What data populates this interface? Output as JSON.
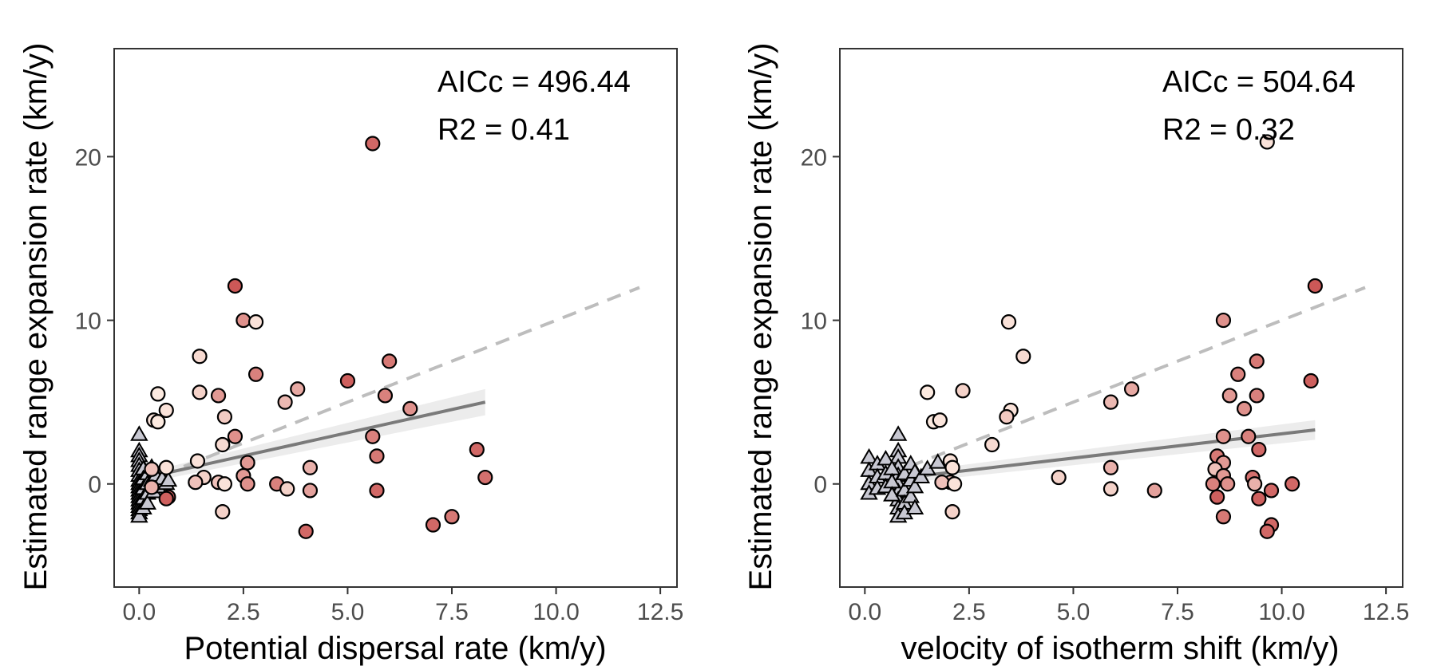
{
  "chart_data": [
    {
      "type": "scatter",
      "xlabel": "Potential dispersal rate (km/y)",
      "ylabel": "Estimated range expansion rate (km/y)",
      "xlim": [
        -0.6,
        12.9
      ],
      "ylim": [
        -6.3,
        26.6
      ],
      "xticks": [
        "0.0",
        "2.5",
        "5.0",
        "7.5",
        "10.0",
        "12.5"
      ],
      "xtick_values": [
        0,
        2.5,
        5,
        7.5,
        10,
        12.5
      ],
      "yticks": [
        "0",
        "10",
        "20"
      ],
      "ytick_values": [
        0,
        10,
        20
      ],
      "grid": false,
      "annotations": [
        "AICc = 496.44",
        "R2 = 0.41"
      ],
      "lines": [
        {
          "style": "dashed",
          "color": "#bdbdbd",
          "x": [
            0,
            12.0
          ],
          "y": [
            0,
            12.0
          ]
        },
        {
          "style": "solid",
          "color": "#7a7a7a",
          "x": [
            0,
            8.3
          ],
          "y": [
            0.3,
            5.0
          ],
          "ci_upper": [
            0.6,
            5.8
          ],
          "ci_lower": [
            0.0,
            4.2
          ]
        }
      ],
      "triangles": [
        {
          "x": 0,
          "y": 3.0
        },
        {
          "x": 0,
          "y": 2.0
        },
        {
          "x": 0,
          "y": 1.7
        },
        {
          "x": 0,
          "y": 1.4
        },
        {
          "x": 0,
          "y": 1.1
        },
        {
          "x": 0,
          "y": 0.8
        },
        {
          "x": 0,
          "y": 0.5
        },
        {
          "x": 0,
          "y": 0.2
        },
        {
          "x": 0,
          "y": 0.0
        },
        {
          "x": 0,
          "y": -0.2
        },
        {
          "x": 0,
          "y": -0.4
        },
        {
          "x": 0,
          "y": -0.6
        },
        {
          "x": 0,
          "y": -0.8
        },
        {
          "x": 0,
          "y": -1.0
        },
        {
          "x": 0,
          "y": -1.2
        },
        {
          "x": 0,
          "y": -1.4
        },
        {
          "x": 0,
          "y": -1.6
        },
        {
          "x": 0,
          "y": -1.8
        },
        {
          "x": 0,
          "y": -2.0
        },
        {
          "x": 0.1,
          "y": 0.9
        },
        {
          "x": 0.1,
          "y": 0.3
        },
        {
          "x": 0.1,
          "y": -0.3
        },
        {
          "x": 0.1,
          "y": -0.9
        },
        {
          "x": 0.1,
          "y": -1.5
        },
        {
          "x": 0.2,
          "y": 0.6
        },
        {
          "x": 0.2,
          "y": 0.0
        },
        {
          "x": 0.2,
          "y": -0.6
        },
        {
          "x": 0.2,
          "y": -1.2
        },
        {
          "x": 0.3,
          "y": 1.0
        },
        {
          "x": 0.3,
          "y": 0.2
        },
        {
          "x": 0.35,
          "y": -0.5
        },
        {
          "x": 0.4,
          "y": 0.5
        },
        {
          "x": 0.45,
          "y": -0.2
        },
        {
          "x": 0.55,
          "y": 0.3
        },
        {
          "x": 0.65,
          "y": 0.0
        },
        {
          "x": 0.7,
          "y": 0.2
        }
      ],
      "points": [
        {
          "x": 5.6,
          "y": 20.8,
          "c": 0.85
        },
        {
          "x": 2.3,
          "y": 12.1,
          "c": 0.95
        },
        {
          "x": 2.5,
          "y": 10.0,
          "c": 0.6
        },
        {
          "x": 2.8,
          "y": 9.9,
          "c": 0.1
        },
        {
          "x": 1.45,
          "y": 7.8,
          "c": 0.15
        },
        {
          "x": 6.0,
          "y": 7.5,
          "c": 0.75
        },
        {
          "x": 2.8,
          "y": 6.7,
          "c": 0.7
        },
        {
          "x": 5.0,
          "y": 6.3,
          "c": 0.9
        },
        {
          "x": 3.8,
          "y": 5.8,
          "c": 0.45
        },
        {
          "x": 1.45,
          "y": 5.6,
          "c": 0.2
        },
        {
          "x": 0.45,
          "y": 5.5,
          "c": 0.05
        },
        {
          "x": 1.9,
          "y": 5.4,
          "c": 0.55
        },
        {
          "x": 5.9,
          "y": 5.4,
          "c": 0.7
        },
        {
          "x": 3.5,
          "y": 5.0,
          "c": 0.35
        },
        {
          "x": 6.5,
          "y": 4.6,
          "c": 0.6
        },
        {
          "x": 0.65,
          "y": 4.5,
          "c": 0.1
        },
        {
          "x": 2.05,
          "y": 4.1,
          "c": 0.25
        },
        {
          "x": 0.35,
          "y": 3.9,
          "c": 0.08
        },
        {
          "x": 0.45,
          "y": 3.8,
          "c": 0.05
        },
        {
          "x": 2.3,
          "y": 2.9,
          "c": 0.6
        },
        {
          "x": 5.6,
          "y": 2.9,
          "c": 0.7
        },
        {
          "x": 2.0,
          "y": 2.4,
          "c": 0.15
        },
        {
          "x": 8.1,
          "y": 2.1,
          "c": 0.85
        },
        {
          "x": 5.7,
          "y": 1.7,
          "c": 0.75
        },
        {
          "x": 1.4,
          "y": 1.4,
          "c": 0.1
        },
        {
          "x": 2.6,
          "y": 1.3,
          "c": 0.55
        },
        {
          "x": 4.1,
          "y": 1.0,
          "c": 0.4
        },
        {
          "x": 0.65,
          "y": 1.0,
          "c": 0.1
        },
        {
          "x": 0.3,
          "y": 0.9,
          "c": 0.3
        },
        {
          "x": 1.55,
          "y": 0.4,
          "c": 0.2
        },
        {
          "x": 2.5,
          "y": 0.5,
          "c": 0.55
        },
        {
          "x": 8.3,
          "y": 0.4,
          "c": 0.8
        },
        {
          "x": 1.35,
          "y": 0.1,
          "c": 0.3
        },
        {
          "x": 1.9,
          "y": 0.1,
          "c": 0.3
        },
        {
          "x": 2.05,
          "y": 0.0,
          "c": 0.1
        },
        {
          "x": 2.6,
          "y": 0.0,
          "c": 0.6
        },
        {
          "x": 3.3,
          "y": 0.0,
          "c": 0.7
        },
        {
          "x": 3.55,
          "y": -0.3,
          "c": 0.2
        },
        {
          "x": 4.1,
          "y": -0.4,
          "c": 0.5
        },
        {
          "x": 5.7,
          "y": -0.4,
          "c": 0.85
        },
        {
          "x": 0.7,
          "y": -0.8,
          "c": 0.9
        },
        {
          "x": 0.65,
          "y": -0.9,
          "c": 0.9
        },
        {
          "x": 0.3,
          "y": -0.2,
          "c": 0.4
        },
        {
          "x": 2.0,
          "y": -1.7,
          "c": 0.2
        },
        {
          "x": 7.5,
          "y": -2.0,
          "c": 0.75
        },
        {
          "x": 7.05,
          "y": -2.5,
          "c": 0.85
        },
        {
          "x": 4.0,
          "y": -2.9,
          "c": 0.85
        }
      ]
    },
    {
      "type": "scatter",
      "xlabel": "velocity of isotherm shift (km/y)",
      "ylabel": "Estimated range expansion rate (km/y)",
      "xlim": [
        -0.6,
        12.9
      ],
      "ylim": [
        -6.3,
        26.6
      ],
      "xticks": [
        "0.0",
        "2.5",
        "5.0",
        "7.5",
        "10.0",
        "12.5"
      ],
      "xtick_values": [
        0,
        2.5,
        5,
        7.5,
        10,
        12.5
      ],
      "yticks": [
        "0",
        "10",
        "20"
      ],
      "ytick_values": [
        0,
        10,
        20
      ],
      "grid": false,
      "annotations": [
        "AICc = 504.64",
        "R2 = 0.32"
      ],
      "lines": [
        {
          "style": "dashed",
          "color": "#bdbdbd",
          "x": [
            0,
            12.0
          ],
          "y": [
            0,
            12.0
          ]
        },
        {
          "style": "solid",
          "color": "#7a7a7a",
          "x": [
            0,
            10.8
          ],
          "y": [
            0.1,
            3.3
          ],
          "ci_upper": [
            0.4,
            3.9
          ],
          "ci_lower": [
            -0.2,
            2.7
          ]
        }
      ],
      "triangles": [
        {
          "x": 0.8,
          "y": 3.0
        },
        {
          "x": 0.8,
          "y": 2.0
        },
        {
          "x": 0.8,
          "y": 1.6
        },
        {
          "x": 0.8,
          "y": 1.0
        },
        {
          "x": 0.8,
          "y": 0.5
        },
        {
          "x": 0.8,
          "y": 0.0
        },
        {
          "x": 0.8,
          "y": -0.5
        },
        {
          "x": 0.8,
          "y": -1.0
        },
        {
          "x": 0.8,
          "y": -1.5
        },
        {
          "x": 0.8,
          "y": -2.0
        },
        {
          "x": 0.1,
          "y": 1.6
        },
        {
          "x": 0.1,
          "y": 0.8
        },
        {
          "x": 0.1,
          "y": 0.0
        },
        {
          "x": 0.1,
          "y": -0.6
        },
        {
          "x": 0.3,
          "y": 1.2
        },
        {
          "x": 0.3,
          "y": 0.4
        },
        {
          "x": 0.3,
          "y": -0.3
        },
        {
          "x": 0.5,
          "y": 1.5
        },
        {
          "x": 0.5,
          "y": 0.6
        },
        {
          "x": 0.5,
          "y": -0.2
        },
        {
          "x": 0.65,
          "y": 0.9
        },
        {
          "x": 0.65,
          "y": 0.1
        },
        {
          "x": 0.65,
          "y": -0.7
        },
        {
          "x": 0.95,
          "y": 0.6
        },
        {
          "x": 0.95,
          "y": -0.4
        },
        {
          "x": 0.95,
          "y": -1.2
        },
        {
          "x": 0.95,
          "y": -1.8
        },
        {
          "x": 1.1,
          "y": 1.2
        },
        {
          "x": 1.1,
          "y": 0.2
        },
        {
          "x": 1.1,
          "y": -0.8
        },
        {
          "x": 1.2,
          "y": 0.7
        },
        {
          "x": 1.2,
          "y": -0.2
        },
        {
          "x": 1.2,
          "y": -1.5
        },
        {
          "x": 1.35,
          "y": 0.4
        },
        {
          "x": 1.5,
          "y": 0.9
        },
        {
          "x": 1.75,
          "y": 1.3
        }
      ],
      "points": [
        {
          "x": 9.65,
          "y": 20.9,
          "c": 0.1
        },
        {
          "x": 10.8,
          "y": 12.1,
          "c": 0.95
        },
        {
          "x": 3.45,
          "y": 9.9,
          "c": 0.1
        },
        {
          "x": 8.6,
          "y": 10.0,
          "c": 0.6
        },
        {
          "x": 3.8,
          "y": 7.8,
          "c": 0.15
        },
        {
          "x": 9.4,
          "y": 7.5,
          "c": 0.75
        },
        {
          "x": 8.95,
          "y": 6.7,
          "c": 0.7
        },
        {
          "x": 10.7,
          "y": 6.3,
          "c": 0.9
        },
        {
          "x": 6.4,
          "y": 5.8,
          "c": 0.45
        },
        {
          "x": 1.5,
          "y": 5.6,
          "c": 0.05
        },
        {
          "x": 2.35,
          "y": 5.7,
          "c": 0.2
        },
        {
          "x": 5.9,
          "y": 5.0,
          "c": 0.35
        },
        {
          "x": 8.75,
          "y": 5.4,
          "c": 0.55
        },
        {
          "x": 9.4,
          "y": 5.4,
          "c": 0.7
        },
        {
          "x": 9.1,
          "y": 4.6,
          "c": 0.6
        },
        {
          "x": 3.5,
          "y": 4.5,
          "c": 0.1
        },
        {
          "x": 3.4,
          "y": 4.1,
          "c": 0.25
        },
        {
          "x": 1.65,
          "y": 3.8,
          "c": 0.05
        },
        {
          "x": 1.8,
          "y": 3.9,
          "c": 0.08
        },
        {
          "x": 8.6,
          "y": 2.9,
          "c": 0.6
        },
        {
          "x": 9.2,
          "y": 2.9,
          "c": 0.7
        },
        {
          "x": 3.05,
          "y": 2.4,
          "c": 0.15
        },
        {
          "x": 9.45,
          "y": 2.1,
          "c": 0.85
        },
        {
          "x": 8.45,
          "y": 1.7,
          "c": 0.75
        },
        {
          "x": 2.05,
          "y": 1.4,
          "c": 0.1
        },
        {
          "x": 8.6,
          "y": 1.3,
          "c": 0.55
        },
        {
          "x": 5.9,
          "y": 1.0,
          "c": 0.4
        },
        {
          "x": 2.1,
          "y": 1.0,
          "c": 0.1
        },
        {
          "x": 8.4,
          "y": 0.9,
          "c": 0.3
        },
        {
          "x": 4.65,
          "y": 0.4,
          "c": 0.2
        },
        {
          "x": 8.6,
          "y": 0.5,
          "c": 0.55
        },
        {
          "x": 9.3,
          "y": 0.4,
          "c": 0.8
        },
        {
          "x": 2.05,
          "y": 0.1,
          "c": 0.3
        },
        {
          "x": 1.85,
          "y": 0.1,
          "c": 0.3
        },
        {
          "x": 2.15,
          "y": 0.0,
          "c": 0.1
        },
        {
          "x": 8.7,
          "y": 0.0,
          "c": 0.6
        },
        {
          "x": 8.35,
          "y": 0.0,
          "c": 0.7
        },
        {
          "x": 5.9,
          "y": -0.3,
          "c": 0.2
        },
        {
          "x": 6.95,
          "y": -0.4,
          "c": 0.5
        },
        {
          "x": 9.75,
          "y": -0.4,
          "c": 0.85
        },
        {
          "x": 8.45,
          "y": -0.8,
          "c": 0.9
        },
        {
          "x": 9.45,
          "y": -0.9,
          "c": 0.9
        },
        {
          "x": 10.25,
          "y": 0.0,
          "c": 0.85
        },
        {
          "x": 9.35,
          "y": 0.0,
          "c": 0.4
        },
        {
          "x": 2.1,
          "y": -1.7,
          "c": 0.2
        },
        {
          "x": 8.6,
          "y": -2.0,
          "c": 0.75
        },
        {
          "x": 9.75,
          "y": -2.5,
          "c": 0.85
        },
        {
          "x": 9.65,
          "y": -2.9,
          "c": 0.85
        }
      ]
    }
  ],
  "colors": {
    "low": "#fff2e8",
    "high": "#c9504f",
    "triangle_fill": "#c8c8d2",
    "stroke": "#000000",
    "panel_border": "#333333"
  }
}
